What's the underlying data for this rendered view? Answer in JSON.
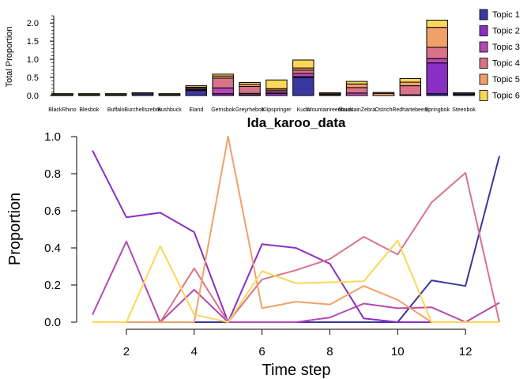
{
  "colors": {
    "topics": [
      "#3a37a1",
      "#8a2fc3",
      "#b548b3",
      "#d8738a",
      "#f2a06a",
      "#f9d759"
    ]
  },
  "chart_data": [
    {
      "type": "bar",
      "stacked": true,
      "ylabel": "Total Proportion",
      "xlabel": "",
      "ylim": [
        0,
        2.2
      ],
      "yticks": [
        "0.0",
        "0.5",
        "1.0",
        "1.5",
        "2.0"
      ],
      "ytick_values": [
        0,
        0.5,
        1.0,
        1.5,
        2.0
      ],
      "legend_position": "right",
      "categories": [
        "BlackRhino",
        "Blesbok",
        "Buffalo",
        "Burchellszebra",
        "Bushbuck",
        "Eland",
        "Gemsbok",
        "Greyrhebok",
        "Klipspringer",
        "Kudu",
        "Mountainreedbuck",
        "MountainZebra",
        "Ostrich",
        "Redhartebeest",
        "Springbok",
        "Steenbok"
      ],
      "series": [
        {
          "name": "Topic 1",
          "values": [
            0.02,
            0.02,
            0.02,
            0.05,
            0.02,
            0.14,
            0.0,
            0.0,
            0.0,
            0.5,
            0.03,
            0.0,
            0.0,
            0.0,
            0.05,
            0.04
          ]
        },
        {
          "name": "Topic 2",
          "values": [
            0.0,
            0.0,
            0.0,
            0.0,
            0.0,
            0.0,
            0.05,
            0.02,
            0.06,
            0.02,
            0.0,
            0.0,
            0.0,
            0.0,
            0.85,
            0.0
          ]
        },
        {
          "name": "Topic 3",
          "values": [
            0.0,
            0.0,
            0.0,
            0.0,
            0.0,
            0.03,
            0.16,
            0.04,
            0.04,
            0.09,
            0.0,
            0.07,
            0.0,
            0.02,
            0.12,
            0.0
          ]
        },
        {
          "name": "Topic 4",
          "values": [
            0.0,
            0.0,
            0.0,
            0.0,
            0.0,
            0.03,
            0.27,
            0.19,
            0.05,
            0.09,
            0.0,
            0.15,
            0.0,
            0.25,
            0.31,
            0.0
          ]
        },
        {
          "name": "Topic 5",
          "values": [
            0.0,
            0.0,
            0.0,
            0.0,
            0.0,
            0.03,
            0.06,
            0.06,
            0.04,
            0.06,
            0.02,
            0.1,
            0.06,
            0.1,
            0.55,
            0.01
          ]
        },
        {
          "name": "Topic 6",
          "values": [
            0.0,
            0.0,
            0.0,
            0.0,
            0.0,
            0.04,
            0.05,
            0.05,
            0.24,
            0.22,
            0.0,
            0.07,
            0.0,
            0.1,
            0.2,
            0.0
          ]
        }
      ]
    },
    {
      "type": "line",
      "title": "lda_karoo_data",
      "xlabel": "Time step",
      "ylabel": "Proportion",
      "xlim": [
        1,
        13
      ],
      "ylim": [
        0,
        1
      ],
      "xticks": [
        2,
        4,
        6,
        8,
        10,
        12
      ],
      "yticks": [
        "0.0",
        "0.2",
        "0.4",
        "0.6",
        "0.8",
        "1.0"
      ],
      "ytick_values": [
        0,
        0.2,
        0.4,
        0.6,
        0.8,
        1.0
      ],
      "x": [
        1,
        2,
        3,
        4,
        5,
        6,
        7,
        8,
        9,
        10,
        11,
        12,
        13
      ],
      "series": [
        {
          "values": [
            0.0,
            0.0,
            0.0,
            0.0,
            0.0,
            0.0,
            0.0,
            0.0,
            0.0,
            0.0,
            0.225,
            0.195,
            0.895
          ]
        },
        {
          "values": [
            0.925,
            0.565,
            0.59,
            0.485,
            0.0,
            0.42,
            0.4,
            0.315,
            0.02,
            0.0,
            0.0,
            0.0,
            0.0
          ]
        },
        {
          "values": [
            0.04,
            0.435,
            0.0,
            0.175,
            0.0,
            0.0,
            0.0,
            0.025,
            0.1,
            0.075,
            0.08,
            0.0,
            0.105
          ]
        },
        {
          "values": [
            0.0,
            0.0,
            0.0,
            0.29,
            0.0,
            0.23,
            0.28,
            0.34,
            0.46,
            0.365,
            0.645,
            0.805,
            0.0
          ]
        },
        {
          "values": [
            0.0,
            0.0,
            0.0,
            0.0,
            1.0,
            0.075,
            0.11,
            0.095,
            0.195,
            0.12,
            0.0,
            0.0,
            0.0
          ]
        },
        {
          "values": [
            0.0,
            0.0,
            0.41,
            0.04,
            0.0,
            0.275,
            0.21,
            0.215,
            0.22,
            0.44,
            0.0,
            0.0,
            0.0
          ]
        }
      ]
    }
  ]
}
